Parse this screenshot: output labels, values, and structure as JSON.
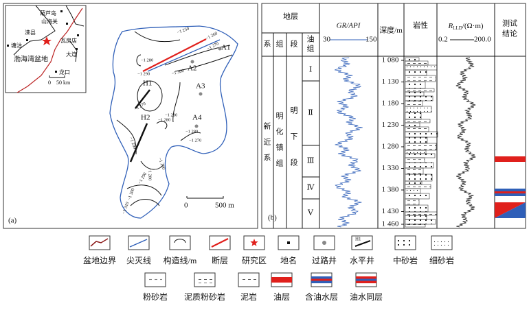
{
  "map": {
    "panel_label": "(a)",
    "inset": {
      "places": [
        "葫芦岛",
        "山海关",
        "滦县",
        "塘沽",
        "瓦房店",
        "大连",
        "龙口"
      ],
      "basin": "渤海湾盆地",
      "scale_zero": "0",
      "scale_label": "50 km"
    },
    "contour_labels": [
      "−1 250",
      "−1 260",
      "−1 270",
      "−1 280",
      "−1 290",
      "−1 300",
      "−1 280",
      "−1 280",
      "−1 270",
      "−1 280",
      "−1 290",
      "−1 270",
      "−1 280",
      "−1 290",
      "−1 300",
      "−1 310",
      "−1 290"
    ],
    "wells": [
      "A1",
      "A2",
      "A3",
      "A4"
    ],
    "horizontal_wells": [
      "H1",
      "H2"
    ],
    "scale_zero": "0",
    "scale_label": "500 m"
  },
  "log": {
    "panel_label": "(b)",
    "header": {
      "strata": "地层",
      "system": "系",
      "formation": "组",
      "member": "段",
      "oil_group": [
        "油",
        "组"
      ],
      "gr_title": "GR/API",
      "gr_min": "30",
      "gr_max": "150",
      "depth_title": "深度/m",
      "lithology": "岩性",
      "r_symbol": "R",
      "r_sub": "LLD",
      "r_unit": "/(Ω·m)",
      "r_min": "0.2",
      "r_max": "200.0",
      "result": [
        "测试",
        "结论"
      ]
    },
    "system": [
      "新",
      "近",
      "系"
    ],
    "formation": [
      "明",
      "化",
      "镇",
      "组"
    ],
    "member": [
      "明",
      "下",
      "段"
    ],
    "oil_groups": [
      "Ⅰ",
      "Ⅱ",
      "Ⅲ",
      "Ⅳ",
      "Ⅴ"
    ],
    "depths": [
      "1 080",
      "1 130",
      "1 180",
      "1 230",
      "1 280",
      "1 330",
      "1 380",
      "1 430",
      "1 460"
    ]
  },
  "legend": {
    "row1": [
      "盆地边界",
      "尖灭线",
      "构造线/m",
      "断层",
      "研究区",
      "地名",
      "过路井",
      "水平井",
      "中砂岩",
      "细砂岩"
    ],
    "row2": [
      "粉砂岩",
      "泥质粉砂岩",
      "泥岩",
      "油层",
      "含油水层",
      "油水同层"
    ],
    "h1": "H1"
  }
}
